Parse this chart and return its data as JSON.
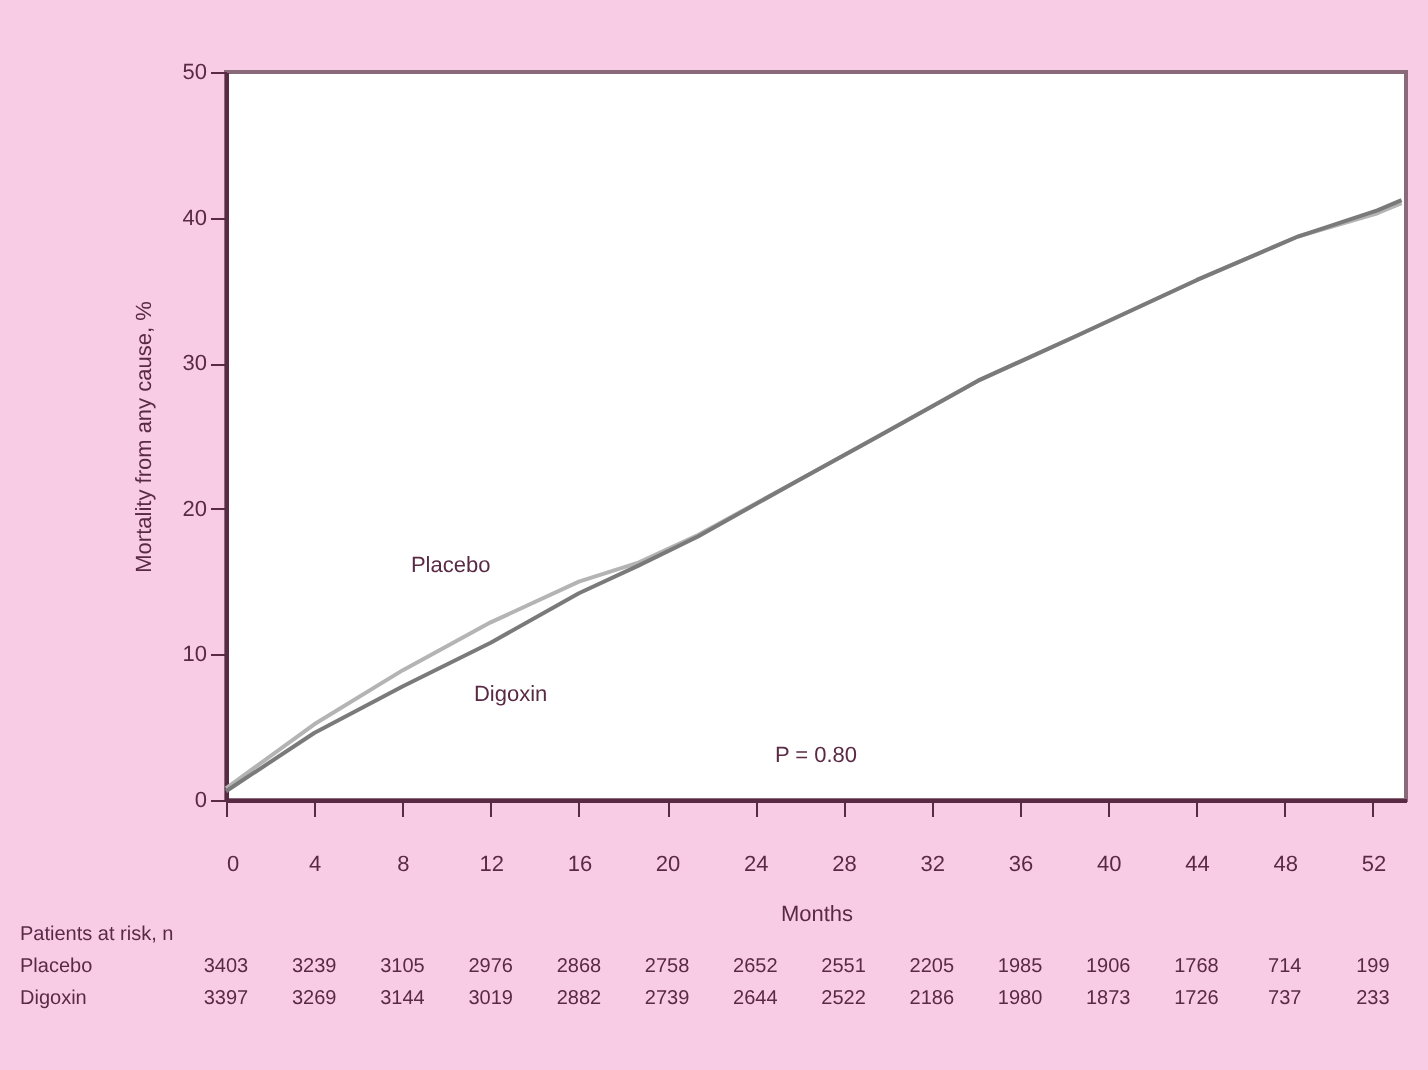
{
  "chart_data": {
    "type": "line",
    "xlabel": "Months",
    "ylabel": "Mortality from any cause, %",
    "xlim": [
      0,
      53.5
    ],
    "ylim": [
      0,
      50
    ],
    "xticks": [
      0,
      4,
      8,
      12,
      16,
      20,
      24,
      28,
      32,
      36,
      40,
      44,
      48,
      52
    ],
    "yticks": [
      0,
      10,
      20,
      30,
      40,
      50
    ],
    "grid": false,
    "marker": "none",
    "line_style": "solid",
    "series": [
      {
        "name": "Placebo",
        "color": "#b4b4b4",
        "x": [
          0,
          4,
          8,
          12,
          16,
          18.7,
          21.4,
          26,
          29.6,
          34.1,
          38.6,
          44,
          48.6,
          52.2,
          53.3
        ],
        "values": [
          0.8,
          5.2,
          8.9,
          12.2,
          15.0,
          16.3,
          18.2,
          22.0,
          25.0,
          28.8,
          31.9,
          35.7,
          38.7,
          40.3,
          41.0
        ]
      },
      {
        "name": "Digoxin",
        "color": "#7a7a7a",
        "x": [
          0,
          4,
          8,
          12,
          16,
          18.7,
          21.4,
          26,
          29.6,
          34.1,
          38.6,
          44,
          48.6,
          52.2,
          53.3
        ],
        "values": [
          0.6,
          4.6,
          7.8,
          10.8,
          14.2,
          16.1,
          18.1,
          22.0,
          25.0,
          28.8,
          31.9,
          35.7,
          38.7,
          40.5,
          41.2
        ]
      }
    ],
    "annotations": [
      "P = 0.80",
      "Patients at risk, n",
      "Placebo 3403 3239 3105 2976 2868 2758 2652 2551 2205 1985 1906 1768 714 199",
      "Digoxin 3397 3269 3144 3019 2882 2739 2644 2522 2186 1980 1873 1726 737 233"
    ]
  }
}
